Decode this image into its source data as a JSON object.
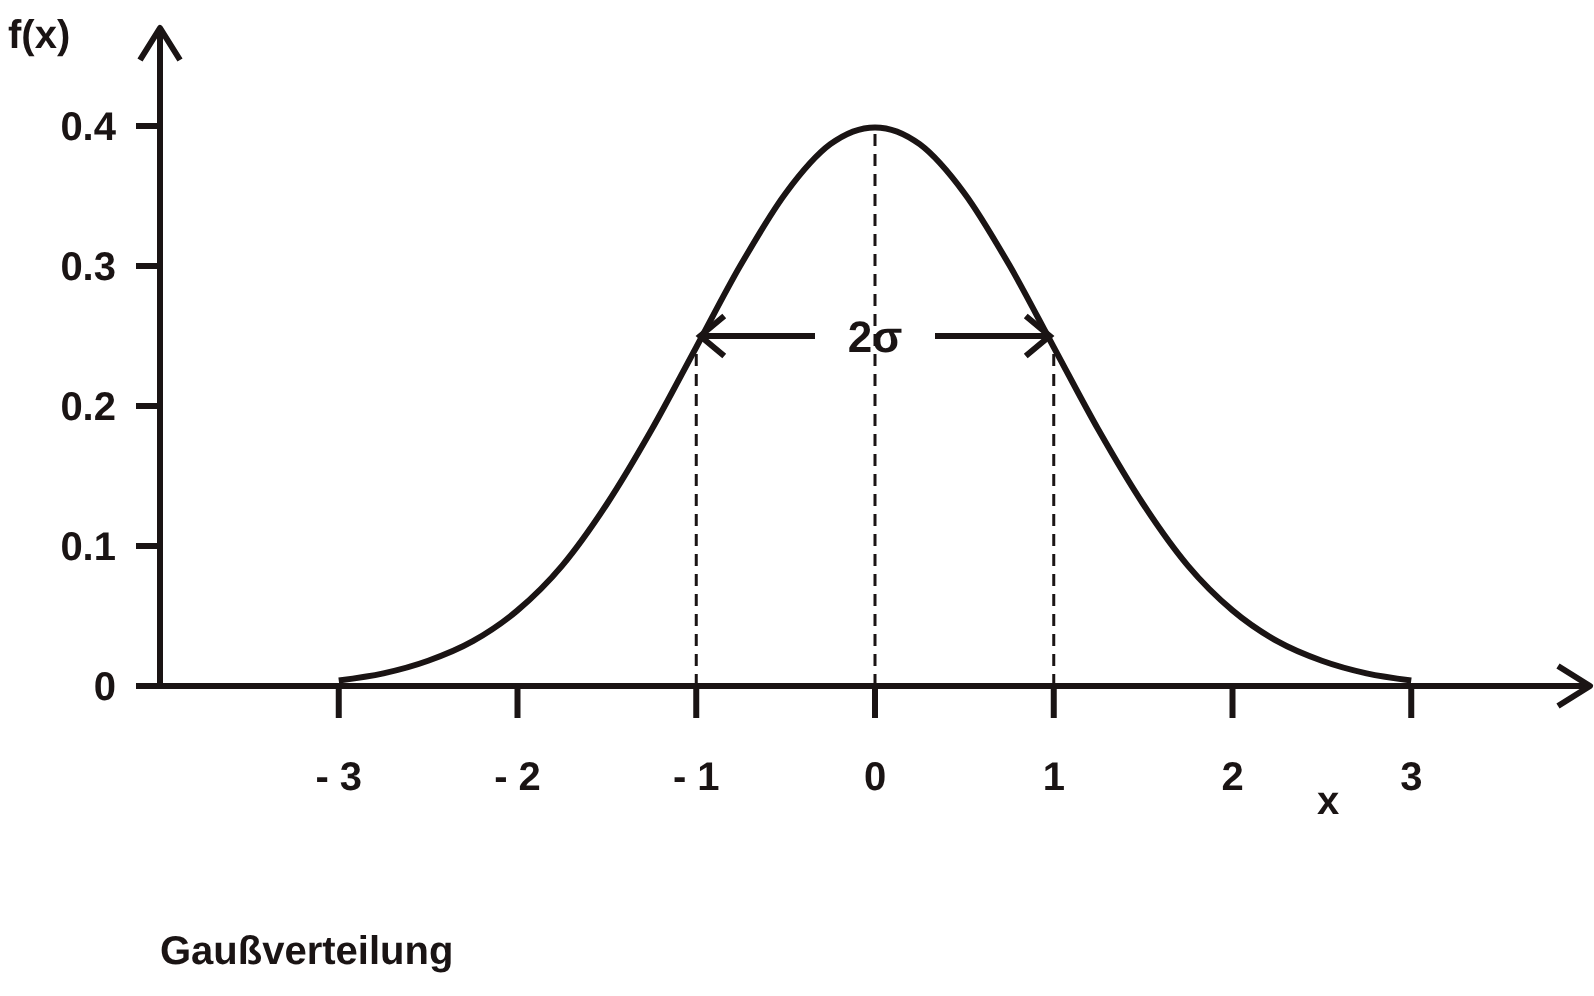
{
  "chart_data": {
    "type": "line",
    "title": "Gaußverteilung",
    "xlabel": "x",
    "ylabel": "f(x)",
    "x": [
      -3,
      -2.75,
      -2.5,
      -2.25,
      -2,
      -1.75,
      -1.5,
      -1.25,
      -1,
      -0.75,
      -0.5,
      -0.25,
      0,
      0.25,
      0.5,
      0.75,
      1,
      1.25,
      1.5,
      1.75,
      2,
      2.25,
      2.5,
      2.75,
      3
    ],
    "series": [
      {
        "color": "#1a1414",
        "values": [
          0.004,
          0.009,
          0.018,
          0.032,
          0.054,
          0.086,
          0.13,
          0.183,
          0.242,
          0.301,
          0.352,
          0.387,
          0.399,
          0.387,
          0.352,
          0.301,
          0.242,
          0.183,
          0.13,
          0.086,
          0.054,
          0.032,
          0.018,
          0.009,
          0.004
        ]
      }
    ],
    "xlim": [
      -4,
      4
    ],
    "ylim": [
      0,
      0.47
    ],
    "xticks": [
      {
        "value": -3,
        "label": "- 3"
      },
      {
        "value": -2,
        "label": "- 2"
      },
      {
        "value": -1,
        "label": "- 1"
      },
      0,
      1,
      2,
      3
    ],
    "yticks": [
      0,
      0.1,
      0.2,
      0.3,
      0.4
    ],
    "ref_lines": [
      {
        "axis": "x",
        "value": -1,
        "line_style": "dashed"
      },
      {
        "axis": "x",
        "value": 0,
        "line_style": "dashed"
      },
      {
        "axis": "x",
        "value": 1,
        "line_style": "dashed"
      }
    ],
    "annotations": [
      {
        "text": "2σ",
        "x": 0,
        "y": 0.25
      }
    ],
    "grid": false,
    "marker": "none",
    "line_style": "solid"
  }
}
